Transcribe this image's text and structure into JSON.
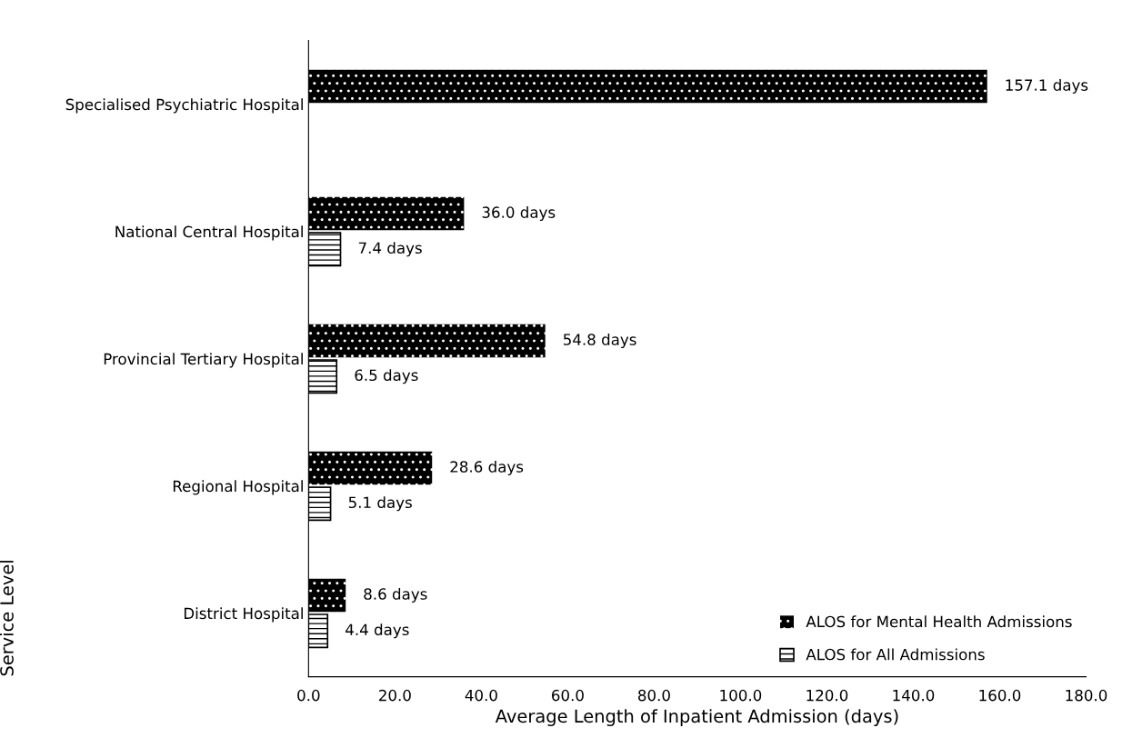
{
  "chart_data": {
    "type": "bar",
    "orientation": "horizontal",
    "xlabel": "Average Length of Inpatient Admission (days)",
    "ylabel": "Service Level",
    "categories": [
      "Specialised Psychiatric Hospital",
      "National Central Hospital",
      "Provincial Tertiary Hospital",
      "Regional Hospital",
      "District Hospital"
    ],
    "series": [
      {
        "name": "ALOS for Mental Health Admissions",
        "color": "#000000",
        "values": [
          157.1,
          36.0,
          54.8,
          28.6,
          8.6
        ],
        "value_labels": [
          "157.1 days",
          "36.0 days",
          "54.8 days",
          "28.6 days",
          "8.6 days"
        ]
      },
      {
        "name": "ALOS for All Admissions",
        "color": "#000000",
        "values": [
          null,
          7.4,
          6.5,
          5.1,
          4.4
        ],
        "value_labels": [
          null,
          "7.4 days",
          "6.5 days",
          "5.1 days",
          "4.4 days"
        ]
      }
    ],
    "xlim": [
      0,
      180
    ],
    "xticks": [
      {
        "value": 0,
        "label": "0.0"
      },
      {
        "value": 20,
        "label": "20.0"
      },
      {
        "value": 40,
        "label": "40.0"
      },
      {
        "value": 60,
        "label": "60.0"
      },
      {
        "value": 80,
        "label": "80.0"
      },
      {
        "value": 100,
        "label": "100.0"
      },
      {
        "value": 120,
        "label": "120.0"
      },
      {
        "value": 140,
        "label": "140.0"
      },
      {
        "value": 160,
        "label": "160.0"
      },
      {
        "value": 180,
        "label": "180.0"
      }
    ],
    "grid": false,
    "legend": "bottom right"
  }
}
